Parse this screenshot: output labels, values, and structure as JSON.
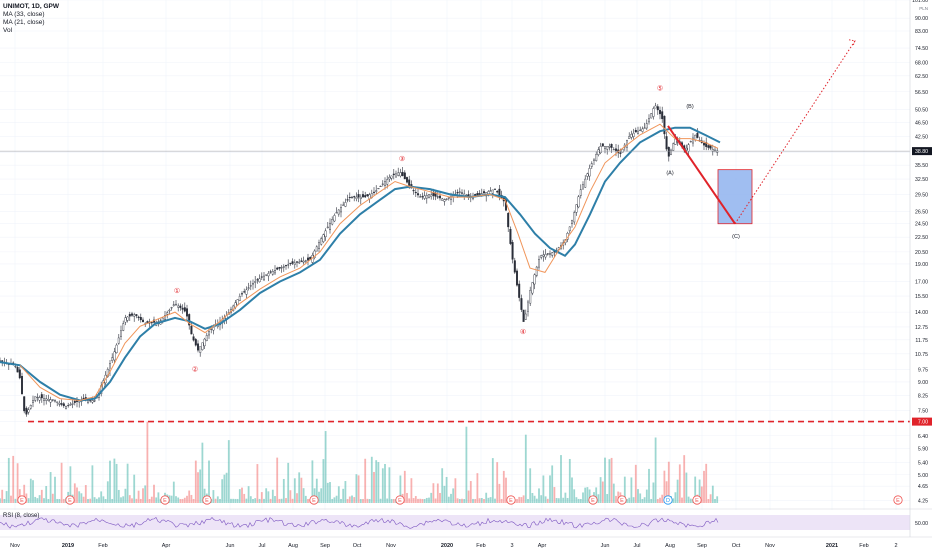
{
  "legend": {
    "title": "UNIMOT, 1D, GPW",
    "ma1": "MA (33, close)",
    "ma2": "MA (21, close)",
    "vol": "Vol"
  },
  "rsi_legend": "RSI (8, close)",
  "colors": {
    "up": "#26a69a",
    "down": "#ef5350",
    "ma_slow": "#2e7fa8",
    "ma_fast": "#f0955a",
    "projection": "#e0232a",
    "target_box": "#8fb3ef",
    "rsi_line": "#7e57c2",
    "rsi_band": "#ede4f7",
    "support": "#e0232a"
  },
  "chart_data": {
    "type": "candlestick",
    "y_scale": "log",
    "ylim": [
      4.0,
      101.0
    ],
    "price_ticks": [
      "101.00",
      "90.00",
      "83.00",
      "74.50",
      "68.00",
      "62.50",
      "56.50",
      "50.50",
      "46.50",
      "42.50",
      "38.50",
      "35.50",
      "32.50",
      "29.50",
      "26.50",
      "24.50",
      "22.50",
      "20.50",
      "19.00",
      "17.00",
      "15.50",
      "14.00",
      "12.75",
      "11.75",
      "10.75",
      "9.75",
      "9.00",
      "8.25",
      "7.50",
      "7.00",
      "6.40",
      "5.90",
      "5.40",
      "5.00",
      "4.65",
      "4.25"
    ],
    "pln_label": "PLN",
    "last_price": "38.80",
    "support_price": "7.00",
    "support_value": 7.0,
    "x_ticks": [
      "Nov",
      "2019",
      "Feb",
      "Apr",
      "Jun",
      "Jul",
      "Aug",
      "Sep",
      "Oct",
      "Nov",
      "2020",
      "Feb",
      "3",
      "Apr",
      "Jun",
      "Jul",
      "Aug",
      "Sep",
      "Oct",
      "Nov",
      "2021",
      "Feb",
      "2"
    ],
    "price_path": [
      [
        0,
        10.3
      ],
      [
        15,
        10.0
      ],
      [
        20,
        9.2
      ],
      [
        25,
        7.2
      ],
      [
        35,
        8.2
      ],
      [
        55,
        8.0
      ],
      [
        65,
        7.7
      ],
      [
        80,
        8.0
      ],
      [
        95,
        8.0
      ],
      [
        105,
        9.3
      ],
      [
        115,
        11.0
      ],
      [
        125,
        13.5
      ],
      [
        135,
        13.8
      ],
      [
        145,
        13.0
      ],
      [
        160,
        13.2
      ],
      [
        175,
        14.8
      ],
      [
        186,
        14.0
      ],
      [
        192,
        12.0
      ],
      [
        198,
        11.0
      ],
      [
        210,
        12.5
      ],
      [
        225,
        13.5
      ],
      [
        240,
        15.5
      ],
      [
        255,
        17.0
      ],
      [
        270,
        18.0
      ],
      [
        290,
        19.0
      ],
      [
        310,
        19.5
      ],
      [
        320,
        22.0
      ],
      [
        335,
        26.0
      ],
      [
        350,
        29.0
      ],
      [
        365,
        29.0
      ],
      [
        375,
        30.0
      ],
      [
        390,
        33.0
      ],
      [
        400,
        34.0
      ],
      [
        410,
        31.0
      ],
      [
        420,
        29.0
      ],
      [
        430,
        29.5
      ],
      [
        445,
        28.5
      ],
      [
        460,
        30.0
      ],
      [
        470,
        29.0
      ],
      [
        480,
        29.5
      ],
      [
        495,
        30.5
      ],
      [
        505,
        28.0
      ],
      [
        512,
        20.0
      ],
      [
        518,
        16.0
      ],
      [
        524,
        13.0
      ],
      [
        530,
        16.0
      ],
      [
        540,
        20.0
      ],
      [
        555,
        20.5
      ],
      [
        565,
        22.0
      ],
      [
        572,
        25.0
      ],
      [
        580,
        30.0
      ],
      [
        590,
        35.0
      ],
      [
        600,
        40.0
      ],
      [
        610,
        40.0
      ],
      [
        620,
        38.0
      ],
      [
        630,
        43.0
      ],
      [
        645,
        45.0
      ],
      [
        655,
        52.0
      ],
      [
        662,
        48.0
      ],
      [
        668,
        37.0
      ],
      [
        675,
        42.0
      ],
      [
        685,
        39.0
      ],
      [
        695,
        43.0
      ],
      [
        705,
        40.0
      ],
      [
        718,
        38.8
      ]
    ],
    "ma_slow_path": [
      [
        0,
        10.2
      ],
      [
        20,
        10.0
      ],
      [
        40,
        9.0
      ],
      [
        60,
        8.3
      ],
      [
        80,
        8.0
      ],
      [
        95,
        8.1
      ],
      [
        110,
        9.0
      ],
      [
        125,
        10.5
      ],
      [
        140,
        12.0
      ],
      [
        155,
        13.0
      ],
      [
        175,
        13.5
      ],
      [
        190,
        13.2
      ],
      [
        205,
        12.6
      ],
      [
        220,
        13.0
      ],
      [
        240,
        14.2
      ],
      [
        260,
        15.8
      ],
      [
        280,
        17.0
      ],
      [
        300,
        18.0
      ],
      [
        320,
        19.5
      ],
      [
        340,
        23.0
      ],
      [
        360,
        26.0
      ],
      [
        380,
        28.5
      ],
      [
        395,
        30.5
      ],
      [
        410,
        31.0
      ],
      [
        430,
        30.5
      ],
      [
        450,
        29.5
      ],
      [
        470,
        29.0
      ],
      [
        490,
        29.5
      ],
      [
        505,
        29.0
      ],
      [
        520,
        26.0
      ],
      [
        535,
        23.0
      ],
      [
        550,
        21.0
      ],
      [
        565,
        20.0
      ],
      [
        575,
        21.5
      ],
      [
        590,
        26.0
      ],
      [
        605,
        32.0
      ],
      [
        620,
        36.0
      ],
      [
        640,
        41.0
      ],
      [
        660,
        44.0
      ],
      [
        675,
        45.0
      ],
      [
        690,
        45.0
      ],
      [
        705,
        43.0
      ],
      [
        720,
        41.0
      ]
    ],
    "ma_fast_path": [
      [
        20,
        10.0
      ],
      [
        40,
        8.7
      ],
      [
        60,
        8.1
      ],
      [
        80,
        8.0
      ],
      [
        95,
        8.2
      ],
      [
        110,
        9.6
      ],
      [
        125,
        11.5
      ],
      [
        140,
        12.8
      ],
      [
        155,
        13.3
      ],
      [
        175,
        14.0
      ],
      [
        190,
        13.0
      ],
      [
        205,
        12.3
      ],
      [
        220,
        13.2
      ],
      [
        240,
        14.8
      ],
      [
        260,
        16.2
      ],
      [
        280,
        17.5
      ],
      [
        300,
        18.5
      ],
      [
        320,
        20.5
      ],
      [
        340,
        24.5
      ],
      [
        360,
        27.5
      ],
      [
        380,
        30.0
      ],
      [
        395,
        32.0
      ],
      [
        410,
        31.0
      ],
      [
        430,
        30.0
      ],
      [
        450,
        29.0
      ],
      [
        470,
        29.0
      ],
      [
        490,
        29.5
      ],
      [
        505,
        28.5
      ],
      [
        518,
        23.0
      ],
      [
        530,
        18.5
      ],
      [
        545,
        18.0
      ],
      [
        560,
        21.0
      ],
      [
        575,
        24.0
      ],
      [
        590,
        30.0
      ],
      [
        605,
        36.0
      ],
      [
        620,
        39.0
      ],
      [
        640,
        43.0
      ],
      [
        660,
        46.0
      ],
      [
        675,
        42.0
      ],
      [
        690,
        42.0
      ],
      [
        705,
        41.0
      ],
      [
        718,
        39.5
      ]
    ],
    "wave_labels": [
      {
        "label": "①",
        "x": 177,
        "price": 15.8
      },
      {
        "label": "②",
        "x": 195,
        "price": 9.6
      },
      {
        "label": "③",
        "x": 402,
        "price": 36.5
      },
      {
        "label": "④",
        "x": 523,
        "price": 12.2
      },
      {
        "label": "⑤",
        "x": 660,
        "price": 57.0
      },
      {
        "label": "(A)",
        "x": 670,
        "price": 33.5
      },
      {
        "label": "(B)",
        "x": 690,
        "price": 51.0
      },
      {
        "label": "(C)",
        "x": 736,
        "price": 22.4
      }
    ],
    "projection": {
      "from": [
        668,
        45.5
      ],
      "to": [
        735,
        24.5
      ],
      "then": [
        855,
        78.0
      ]
    },
    "target_zone": {
      "x0": 718,
      "x1": 752,
      "high": 34.5,
      "low": 24.5
    },
    "rsi_ticks": [
      "50.00"
    ],
    "event_markers": [
      "E",
      "E",
      "E",
      "E",
      "E",
      "E",
      "E",
      "E",
      "E",
      "D",
      "E",
      "E",
      "E"
    ]
  }
}
